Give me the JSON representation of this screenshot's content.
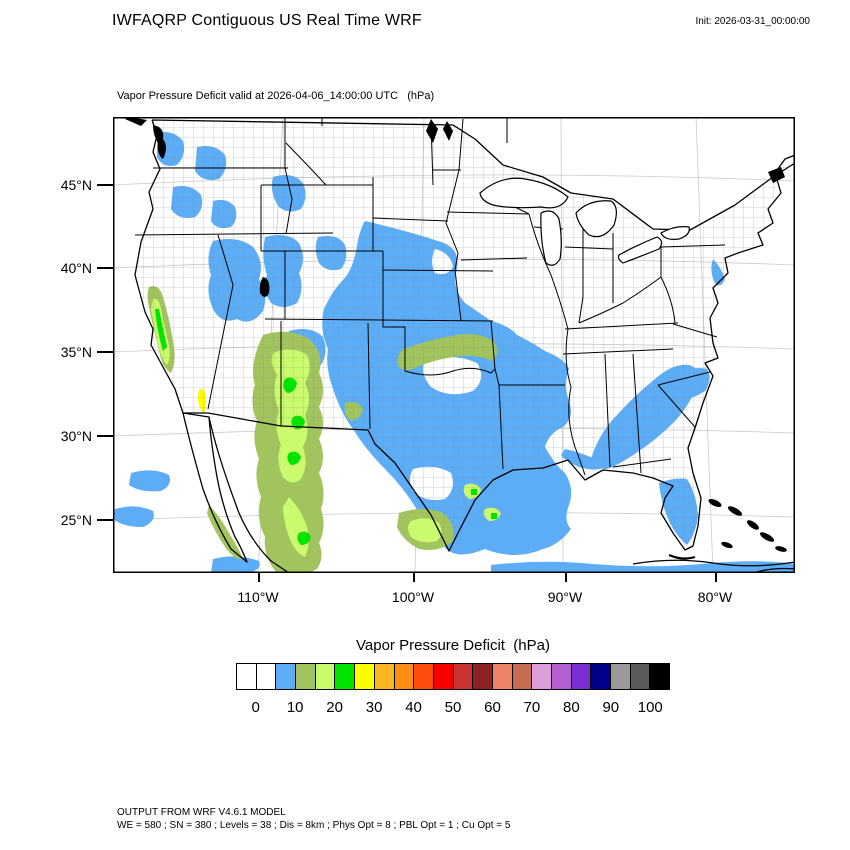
{
  "header": {
    "title": "IWFAQRP Contiguous US Real Time WRF",
    "init_label": "Init: 2026-03-31_00:00:00"
  },
  "subtitle": "Vapor Pressure Deficit valid at 2026-04-06_14:00:00 UTC   (hPa)",
  "map": {
    "lat_labels": [
      "45°N",
      "40°N",
      "35°N",
      "30°N",
      "25°N"
    ],
    "lon_labels": [
      "110°W",
      "100°W",
      "90°W",
      "80°W"
    ],
    "projection_note": "Lambert conformal CONUS domain with county outlines",
    "field_summary": [
      {
        "region": "Central Plains (E CO, KS, OK, TX, E NM)",
        "vpd_hpa": "5-10"
      },
      {
        "region": "Great Basin / Intermountain West patches",
        "vpd_hpa": "5-10"
      },
      {
        "region": "Arizona / Sonora / Baja corridor",
        "vpd_hpa": "10-25, locally 25-35"
      },
      {
        "region": "California Central Valley",
        "vpd_hpa": "10-25"
      },
      {
        "region": "Southeast band (GA, Carolinas) and Florida",
        "vpd_hpa": "5-10"
      },
      {
        "region": "Midwest, Mississippi Valley, Northeast, Pacific coast",
        "vpd_hpa": "0-5"
      }
    ]
  },
  "colorbar": {
    "title": "Vapor Pressure Deficit  (hPa)",
    "tick_labels": [
      "0",
      "10",
      "20",
      "30",
      "40",
      "50",
      "60",
      "70",
      "80",
      "90",
      "100"
    ],
    "cells": [
      {
        "value_range": "< 0",
        "color": "#FFFFFF"
      },
      {
        "value_range": "0-5",
        "color": "#FFFFFF"
      },
      {
        "value_range": "5-10",
        "color": "#5CACF6"
      },
      {
        "value_range": "10-15",
        "color": "#A2C45F"
      },
      {
        "value_range": "15-20",
        "color": "#CCFA6E"
      },
      {
        "value_range": "20-25",
        "color": "#00E400"
      },
      {
        "value_range": "25-30",
        "color": "#FFFF00"
      },
      {
        "value_range": "30-35",
        "color": "#FCB622"
      },
      {
        "value_range": "35-40",
        "color": "#FF8E15"
      },
      {
        "value_range": "40-45",
        "color": "#FF4D0D"
      },
      {
        "value_range": "45-50",
        "color": "#F80000"
      },
      {
        "value_range": "50-55",
        "color": "#CC3333"
      },
      {
        "value_range": "55-60",
        "color": "#8B2323"
      },
      {
        "value_range": "60-65",
        "color": "#F08265"
      },
      {
        "value_range": "65-70",
        "color": "#C76B52"
      },
      {
        "value_range": "70-75",
        "color": "#DC9FDC"
      },
      {
        "value_range": "75-80",
        "color": "#B45FD0"
      },
      {
        "value_range": "80-85",
        "color": "#7B2FD3"
      },
      {
        "value_range": "85-90",
        "color": "#00008B"
      },
      {
        "value_range": "90-95",
        "color": "#9A9A9A"
      },
      {
        "value_range": "95-100",
        "color": "#5A5A5A"
      },
      {
        "value_range": "> 100",
        "color": "#000000"
      }
    ]
  },
  "footer": {
    "line1": "OUTPUT FROM WRF V4.6.1 MODEL",
    "line2": "WE = 580 ; SN = 380 ; Levels = 38 ; Dis = 8km ; Phys Opt = 8 ; PBL Opt = 1 ; Cu Opt = 5"
  }
}
